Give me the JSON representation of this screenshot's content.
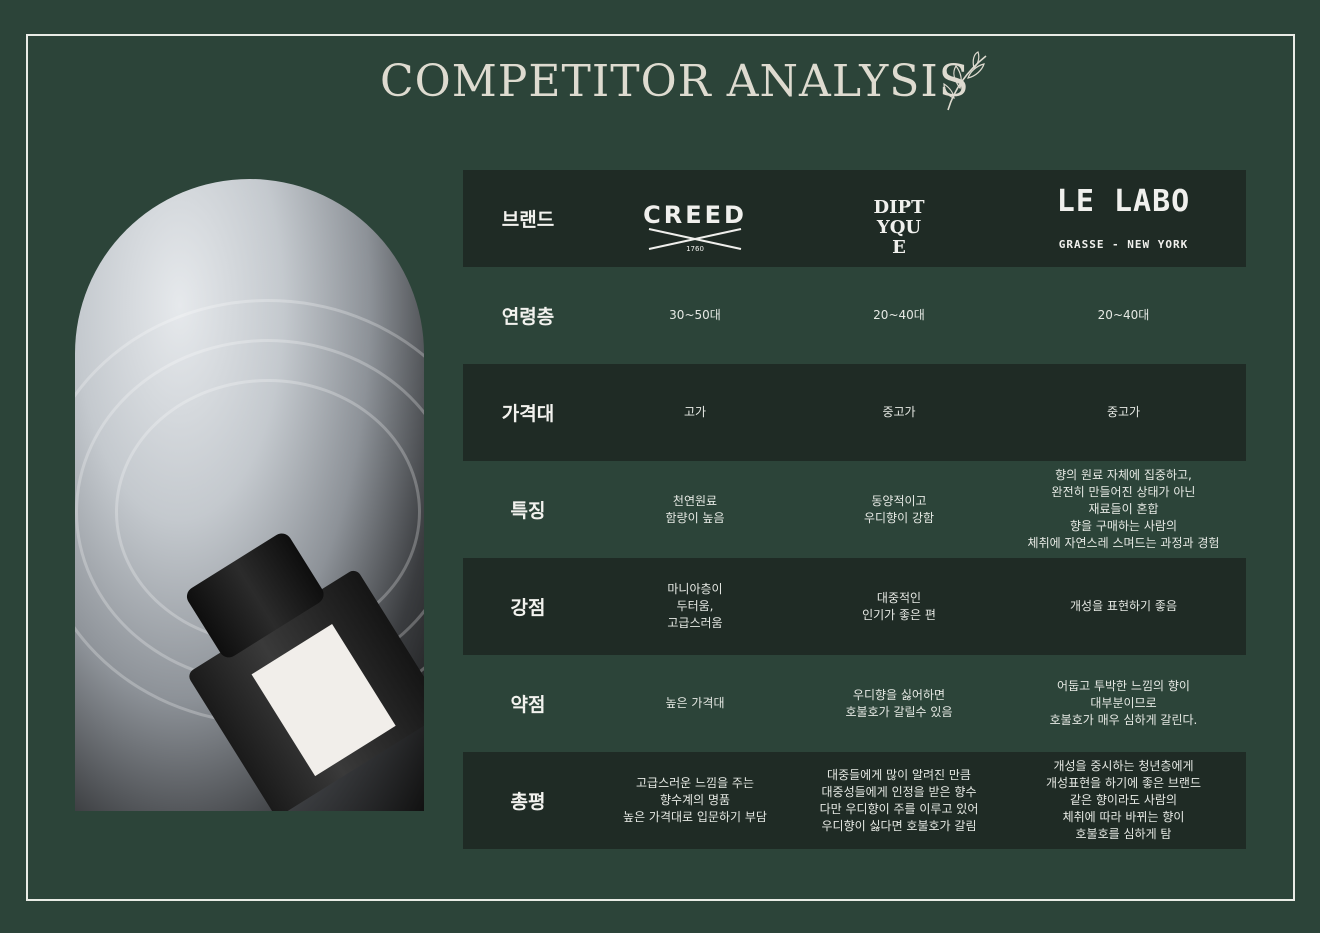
{
  "title": "COMPETITOR ANALYSIS",
  "colors": {
    "background": "#2c4439",
    "row_dark": "#1f2b25",
    "frame": "#e9ece6",
    "title": "#dedbd0"
  },
  "header": {
    "label": "브랜드",
    "brands": [
      {
        "name": "CREED",
        "sub": "1760"
      },
      {
        "name": "DIPTYQUE",
        "sub": ""
      },
      {
        "name": "LE LABO",
        "sub": "GRASSE - NEW YORK"
      }
    ]
  },
  "rows": [
    {
      "label": "연령층",
      "values": [
        "30~50대",
        "20~40대",
        "20~40대"
      ]
    },
    {
      "label": "가격대",
      "values": [
        "고가",
        "중고가",
        "중고가"
      ]
    },
    {
      "label": "특징",
      "values": [
        "천연원료\n함량이 높음",
        "동양적이고\n우디향이 강함",
        "향의 원료 자체에 집중하고,\n완전히 만들어진 상태가 아닌\n재료들이 혼합\n향을 구매하는 사람의\n체취에 자연스레 스며드는 과정과 경험"
      ]
    },
    {
      "label": "강점",
      "values": [
        "마니아층이\n두터움,\n고급스러움",
        "대중적인\n인기가 좋은 편",
        "개성을 표현하기 좋음"
      ]
    },
    {
      "label": "약점",
      "values": [
        "높은 가격대",
        "우디향을 싫어하면\n호불호가 갈릴수 있음",
        "어둡고 투박한 느낌의 향이\n대부분이므로\n호불호가 매우 심하게 갈린다."
      ]
    },
    {
      "label": "총평",
      "values": [
        "고급스러운 느낌을 주는\n향수계의 명품\n높은 가격대로 입문하기 부담",
        "대중들에게 많이 알려진 만큼\n대중성들에게 인정을 받은 향수\n다만 우디향이 주를 이루고 있어\n우디향이 싫다면 호불호가 갈림",
        "개성을 중시하는 청년층에게\n개성표현을 하기에 좋은 브랜드\n같은 향이라도 사람의\n체취에 따라 바뀌는 향이\n호불호를 심하게 탐"
      ]
    }
  ]
}
